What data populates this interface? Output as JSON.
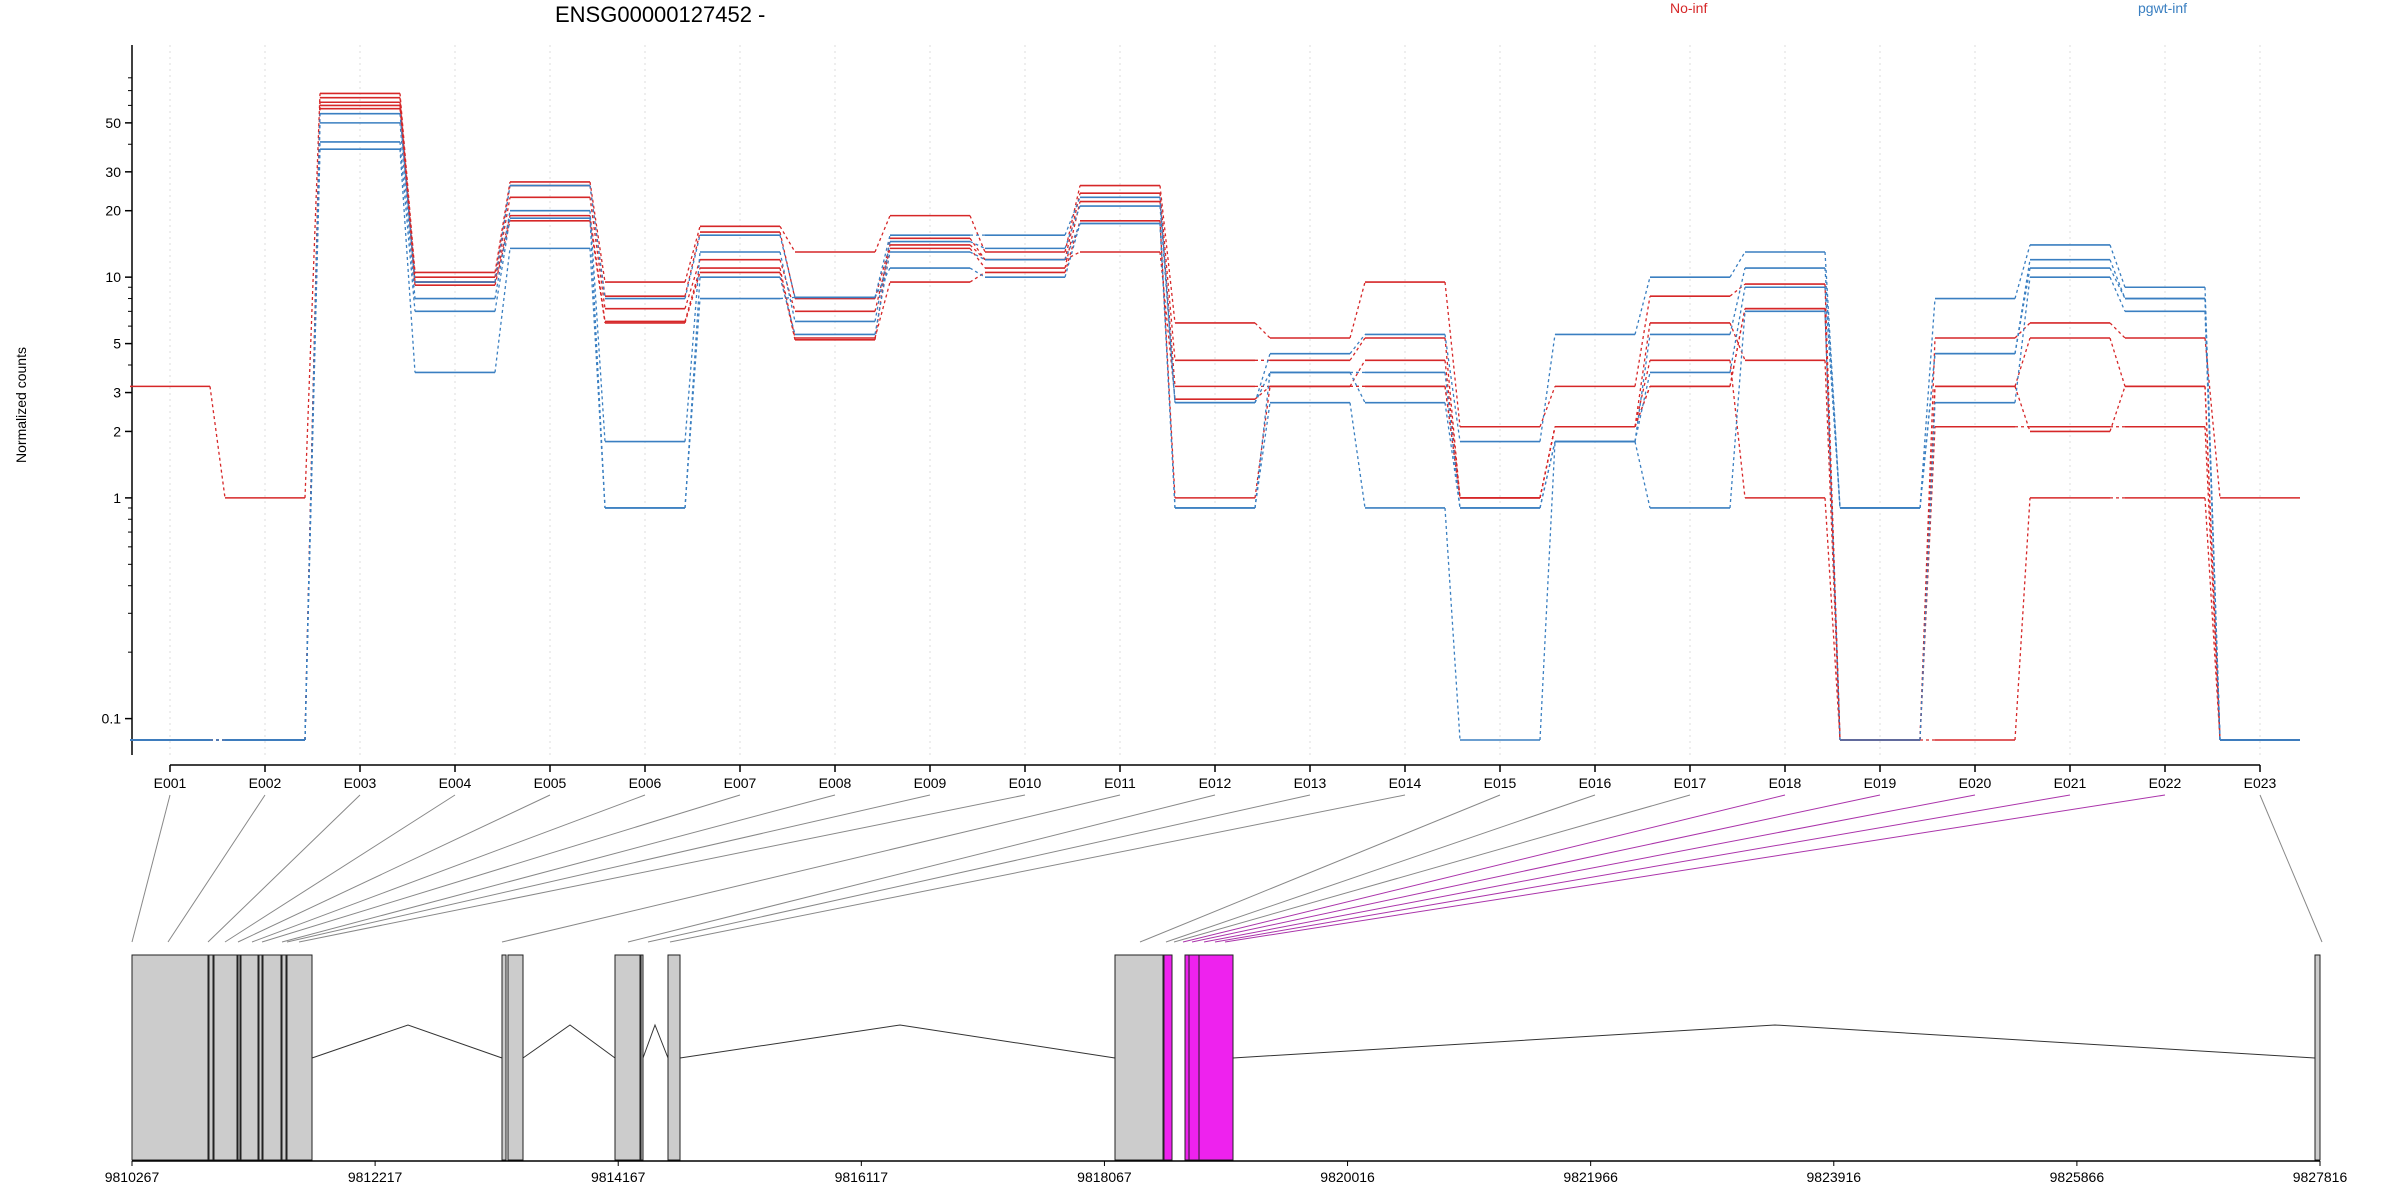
{
  "chart_data": {
    "type": "line",
    "title": "ENSG00000127452 -",
    "ylabel": "Normalized counts",
    "yscale": "log",
    "ylim": [
      0.08,
      85
    ],
    "yticks": [
      0.1,
      1,
      2,
      3,
      5,
      10,
      20,
      30,
      50
    ],
    "ytick_labels": [
      "0.1",
      "1",
      "2",
      "3",
      "5",
      "10",
      "20",
      "30",
      "50"
    ],
    "categories": [
      "E001",
      "E002",
      "E003",
      "E004",
      "E005",
      "E006",
      "E007",
      "E008",
      "E009",
      "E010",
      "E011",
      "E012",
      "E013",
      "E014",
      "E015",
      "E016",
      "E017",
      "E018",
      "E019",
      "E020",
      "E021",
      "E022",
      "E023"
    ],
    "legend": [
      {
        "label": "No-inf",
        "color": "#d62728"
      },
      {
        "label": "pgwt-inf",
        "color": "#3a7fc1"
      }
    ],
    "series": [
      {
        "group": "No-inf",
        "color": "#d62728",
        "values": [
          3.2,
          1.0,
          68,
          10.5,
          27,
          9.5,
          17,
          13,
          19,
          13,
          26,
          6.2,
          5.3,
          9.5,
          2.1,
          3.2,
          8.2,
          9.3,
          0.08,
          5.3,
          6.2,
          5.3,
          1.0
        ]
      },
      {
        "group": "No-inf",
        "color": "#d62728",
        "values": [
          0.08,
          0.08,
          65,
          10,
          26,
          8.2,
          16,
          8,
          14,
          12,
          24,
          4.2,
          4.2,
          5.3,
          1.0,
          2.1,
          6.2,
          4.2,
          0.08,
          3.2,
          5.3,
          3.2,
          0.08
        ]
      },
      {
        "group": "No-inf",
        "color": "#d62728",
        "values": [
          0.08,
          0.08,
          62,
          9.5,
          23,
          7.2,
          12,
          7,
          13.5,
          11,
          22,
          3.2,
          3.2,
          4.2,
          1.0,
          2.1,
          4.2,
          1.0,
          0.08,
          2.1,
          2.1,
          2.1,
          0.08
        ]
      },
      {
        "group": "No-inf",
        "color": "#d62728",
        "values": [
          0.08,
          0.08,
          60,
          9.5,
          19,
          6.3,
          11,
          5.3,
          9.5,
          10.5,
          18,
          1.0,
          3.2,
          3.2,
          1.0,
          2.1,
          3.2,
          7.2,
          0.08,
          0.08,
          1.0,
          1.0,
          0.08
        ]
      },
      {
        "group": "No-inf",
        "color": "#d62728",
        "values": [
          0.08,
          0.08,
          58,
          9.2,
          18,
          6.2,
          10.5,
          5.2,
          15,
          12,
          13,
          2.8,
          3.2,
          3.2,
          1.0,
          2.1,
          3.2,
          7.2,
          0.08,
          3.2,
          2.0,
          3.2,
          0.08
        ]
      },
      {
        "group": "pgwt-inf",
        "color": "#3a7fc1",
        "values": [
          0.08,
          0.08,
          55,
          9.5,
          26,
          8,
          15.5,
          8.1,
          15.5,
          15.5,
          23,
          2.7,
          4.5,
          5.5,
          1.8,
          5.5,
          10,
          13,
          0.9,
          8,
          14,
          9,
          0.08
        ]
      },
      {
        "group": "pgwt-inf",
        "color": "#3a7fc1",
        "values": [
          0.08,
          0.08,
          50,
          8,
          20,
          1.8,
          13,
          6.3,
          14.5,
          13.5,
          21,
          2.7,
          3.7,
          3.7,
          0.9,
          1.8,
          5.5,
          11,
          0.9,
          4.5,
          12,
          8,
          0.08
        ]
      },
      {
        "group": "pgwt-inf",
        "color": "#3a7fc1",
        "values": [
          0.08,
          0.08,
          41,
          7,
          18.5,
          0.9,
          10,
          5.5,
          13,
          12,
          17.5,
          0.9,
          3.7,
          2.7,
          0.9,
          1.8,
          3.7,
          9,
          0.9,
          4.5,
          11,
          8,
          0.08
        ]
      },
      {
        "group": "pgwt-inf",
        "color": "#3a7fc1",
        "values": [
          0.08,
          0.08,
          38,
          3.7,
          13.5,
          0.9,
          8,
          8.1,
          11,
          10,
          17.5,
          0.9,
          2.7,
          0.9,
          0.08,
          1.8,
          0.9,
          7,
          0.08,
          2.7,
          10,
          7,
          0.08
        ]
      }
    ],
    "genome": {
      "tick_labels": [
        "9810267",
        "9812217",
        "9814167",
        "9816117",
        "9818067",
        "9820016",
        "9821966",
        "9823916",
        "9825866",
        "9827816"
      ],
      "exon_color": "#cccccc",
      "highlight_color": "#ee22ee",
      "highlighted_exons": [
        "E018",
        "E019",
        "E020",
        "E021",
        "E022"
      ]
    }
  }
}
